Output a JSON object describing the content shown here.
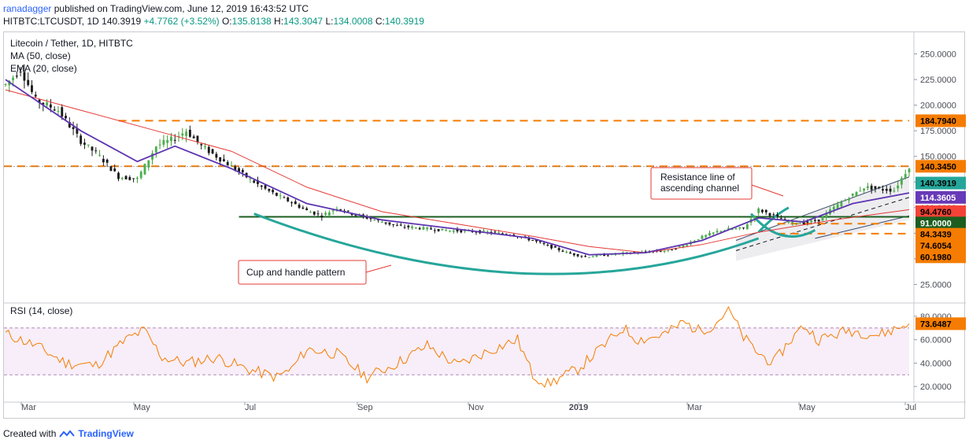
{
  "header": {
    "author": "ranadagger",
    "published_text": "published on TradingView.com, June 12, 2019 16:43:52 UTC",
    "symbol": "HITBTC:LTCUSDT, 1D",
    "last": "140.3919",
    "change": "+4.7762 (+3.52%)",
    "o_label": "O:",
    "o_value": "135.8138",
    "h_label": "H:",
    "h_value": "143.3047",
    "l_label": "L:",
    "l_value": "134.0008",
    "c_label": "C:",
    "c_value": "140.3919"
  },
  "footer": {
    "created_with": "Created with",
    "brand": "TradingView"
  },
  "chart_data": [
    {
      "type": "candlestick",
      "title": "Litecoin / Tether, 1D, HITBTC",
      "indicators": [
        "MA (50, close)",
        "EMA (20, close)"
      ],
      "ylim": [
        10,
        265
      ],
      "y_ticks": [
        25,
        50,
        75,
        100,
        125,
        150,
        175,
        200,
        225,
        250
      ],
      "y_tick_labels": [
        "25.0000",
        "50.0000",
        "75.0000",
        "100.0000",
        "125.0000",
        "150.0000",
        "175.0000",
        "200.0000",
        "225.0000",
        "250.0000"
      ],
      "x_tick_labels": [
        "Mar",
        "May",
        "Jul",
        "Sep",
        "Nov",
        "2019",
        "Mar",
        "May",
        "Jul"
      ],
      "price_path": [
        [
          0,
          220
        ],
        [
          4,
          235
        ],
        [
          8,
          205
        ],
        [
          14,
          195
        ],
        [
          20,
          165
        ],
        [
          25,
          150
        ],
        [
          30,
          130
        ],
        [
          35,
          128
        ],
        [
          40,
          160
        ],
        [
          45,
          168
        ],
        [
          48,
          175
        ],
        [
          52,
          160
        ],
        [
          56,
          150
        ],
        [
          60,
          140
        ],
        [
          64,
          130
        ],
        [
          68,
          120
        ],
        [
          72,
          112
        ],
        [
          76,
          105
        ],
        [
          80,
          97
        ],
        [
          84,
          92
        ],
        [
          88,
          100
        ],
        [
          92,
          94
        ],
        [
          98,
          88
        ],
        [
          104,
          82
        ],
        [
          110,
          80
        ],
        [
          116,
          78
        ],
        [
          122,
          77
        ],
        [
          128,
          76
        ],
        [
          134,
          74
        ],
        [
          140,
          68
        ],
        [
          146,
          60
        ],
        [
          150,
          55
        ],
        [
          154,
          52
        ],
        [
          160,
          54
        ],
        [
          166,
          56
        ],
        [
          172,
          57
        ],
        [
          176,
          58
        ],
        [
          180,
          63
        ],
        [
          184,
          70
        ],
        [
          190,
          78
        ],
        [
          196,
          80
        ],
        [
          200,
          98
        ],
        [
          204,
          92
        ],
        [
          208,
          86
        ],
        [
          212,
          85
        ],
        [
          216,
          88
        ],
        [
          220,
          100
        ],
        [
          224,
          110
        ],
        [
          228,
          120
        ],
        [
          232,
          118
        ],
        [
          236,
          117
        ],
        [
          240,
          140.3919
        ]
      ],
      "ma_path": [
        [
          0,
          215
        ],
        [
          20,
          195
        ],
        [
          40,
          175
        ],
        [
          60,
          155
        ],
        [
          80,
          120
        ],
        [
          100,
          96
        ],
        [
          120,
          84
        ],
        [
          140,
          72
        ],
        [
          155,
          62
        ],
        [
          170,
          56
        ],
        [
          185,
          64
        ],
        [
          200,
          76
        ],
        [
          220,
          88
        ],
        [
          240,
          98
        ]
      ],
      "ema_path": [
        [
          0,
          225
        ],
        [
          20,
          175
        ],
        [
          35,
          145
        ],
        [
          45,
          160
        ],
        [
          60,
          138
        ],
        [
          80,
          104
        ],
        [
          100,
          88
        ],
        [
          120,
          79
        ],
        [
          140,
          70
        ],
        [
          155,
          54
        ],
        [
          170,
          56
        ],
        [
          185,
          68
        ],
        [
          200,
          90
        ],
        [
          212,
          86
        ],
        [
          225,
          104
        ],
        [
          240,
          114.3605
        ]
      ],
      "price_tags": [
        {
          "label": "184.7940",
          "value": 184.794,
          "bg": "#f57c00",
          "fg": "#000000"
        },
        {
          "label": "140.3450",
          "value": 140.345,
          "bg": "#f57c00",
          "fg": "#000000"
        },
        {
          "label": "140.3919",
          "value": 124,
          "bg": "#26a69a",
          "fg": "#000000"
        },
        {
          "label": "114.3605",
          "value": 110,
          "bg": "#673ab7",
          "fg": "#ffffff"
        },
        {
          "label": "94.4760",
          "value": 96,
          "bg": "#f44336",
          "fg": "#000000"
        },
        {
          "label": "91.0000",
          "value": 85,
          "bg": "#1b5e20",
          "fg": "#ffffff"
        },
        {
          "label": "84.3439",
          "value": 74,
          "bg": "#f57c00",
          "fg": "#000000"
        },
        {
          "label": "74.6054",
          "value": 63,
          "bg": "#f57c00",
          "fg": "#000000"
        },
        {
          "label": "60.1980",
          "value": 52,
          "bg": "#f57c00",
          "fg": "#000000"
        }
      ],
      "horizontal_levels": [
        184.794,
        140.345,
        91.0,
        84.3439,
        74.6054
      ],
      "annotations": {
        "resistance": "Resistance line of\nascending channel",
        "cup": "Cup and handle pattern"
      }
    },
    {
      "type": "line",
      "title": "RSI (14, close)",
      "ylim": [
        10,
        90
      ],
      "y_ticks": [
        20,
        40,
        60,
        80
      ],
      "y_tick_labels": [
        "20.0000",
        "40.0000",
        "60.0000",
        "80.0000"
      ],
      "bands": [
        30,
        70
      ],
      "last_label": "73.6487",
      "last_value": 73.6487,
      "values_path": [
        [
          0,
          65
        ],
        [
          10,
          55
        ],
        [
          20,
          40
        ],
        [
          30,
          38
        ],
        [
          40,
          60
        ],
        [
          46,
          68
        ],
        [
          52,
          45
        ],
        [
          60,
          40
        ],
        [
          70,
          45
        ],
        [
          80,
          35
        ],
        [
          90,
          28
        ],
        [
          95,
          35
        ],
        [
          100,
          52
        ],
        [
          110,
          48
        ],
        [
          120,
          28
        ],
        [
          130,
          40
        ],
        [
          140,
          55
        ],
        [
          150,
          38
        ],
        [
          160,
          50
        ],
        [
          170,
          60
        ],
        [
          175,
          30
        ],
        [
          180,
          22
        ],
        [
          190,
          35
        ],
        [
          200,
          58
        ],
        [
          205,
          70
        ],
        [
          210,
          60
        ],
        [
          215,
          62
        ],
        [
          220,
          66
        ],
        [
          225,
          75
        ],
        [
          230,
          68
        ],
        [
          235,
          72
        ],
        [
          240,
          86
        ],
        [
          245,
          62
        ],
        [
          250,
          48
        ],
        [
          255,
          40
        ],
        [
          260,
          58
        ],
        [
          265,
          72
        ],
        [
          270,
          60
        ],
        [
          280,
          68
        ],
        [
          290,
          64
        ],
        [
          300,
          73.6487
        ]
      ]
    }
  ]
}
